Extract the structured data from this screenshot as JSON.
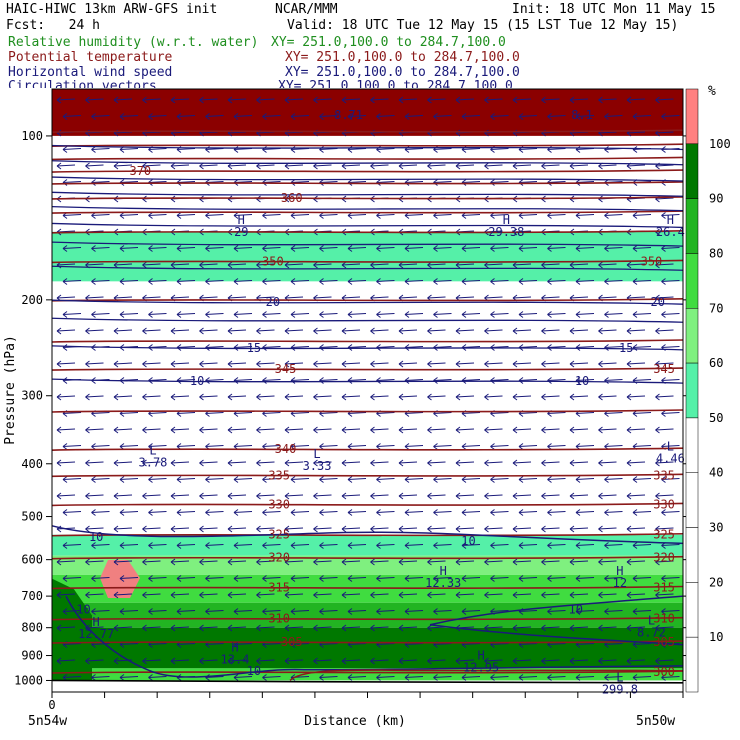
{
  "header": {
    "title": "HAIC-HIWC 13km ARW-GFS init",
    "org": "NCAR/MMM",
    "init": "Init: 18 UTC Mon 11 May 15",
    "fcst": "Fcst:   24 h",
    "valid": "Valid: 18 UTC Tue 12 May 15 (15 LST Tue 12 May 15)",
    "fields": [
      {
        "label": "Relative humidity (w.r.t. water)",
        "xy": "XY= 251.0,100.0 to 284.7,100.0",
        "color": "#1f8f1f"
      },
      {
        "label": "Potential temperature",
        "xy": "XY= 251.0,100.0 to 284.7,100.0",
        "color": "#8b1a1a"
      },
      {
        "label": "Horizontal wind speed",
        "xy": "XY= 251.0,100.0 to 284.7,100.0",
        "color": "#1a1a7a"
      },
      {
        "label": "Circulation vectors",
        "xy": "XY= 251.0,100.0 to 284.7,100.0",
        "color": "#1a1a7a"
      }
    ]
  },
  "chart_data": {
    "type": "heatmap",
    "xlabel": "Distance (km)",
    "ylabel": "Pressure (hPa)",
    "x_tick_label": "0",
    "x_left_label": "5n54w",
    "x_right_label": "5n50w",
    "y_ticks": [
      100,
      200,
      300,
      400,
      500,
      600,
      700,
      800,
      900,
      1000
    ],
    "y_scale": "log",
    "ylim": [
      1050,
      82
    ],
    "colorbar": {
      "unit": "%",
      "levels": [
        10,
        20,
        30,
        40,
        50,
        60,
        70,
        80,
        90,
        100
      ],
      "colors": [
        "#ffffff",
        "#ffffff",
        "#ffffff",
        "#ffffff",
        "#ffffff",
        "#55f0a8",
        "#7ff07f",
        "#40dc40",
        "#22b422",
        "#007800",
        "#ff8080"
      ]
    },
    "theta_labels": [
      {
        "value": "370",
        "p": 116,
        "x": 0.14
      },
      {
        "value": "360",
        "p": 130,
        "x": 0.38
      },
      {
        "value": "350",
        "p": 170,
        "x": 0.35
      },
      {
        "value": "350",
        "p": 170,
        "x": 0.95
      },
      {
        "value": "345",
        "p": 268,
        "x": 0.37
      },
      {
        "value": "345",
        "p": 268,
        "x": 0.97
      },
      {
        "value": "340",
        "p": 376,
        "x": 0.37
      },
      {
        "value": "335",
        "p": 420,
        "x": 0.36
      },
      {
        "value": "335",
        "p": 420,
        "x": 0.97
      },
      {
        "value": "330",
        "p": 475,
        "x": 0.36
      },
      {
        "value": "330",
        "p": 475,
        "x": 0.97
      },
      {
        "value": "325",
        "p": 540,
        "x": 0.36
      },
      {
        "value": "325",
        "p": 540,
        "x": 0.97
      },
      {
        "value": "320",
        "p": 595,
        "x": 0.36
      },
      {
        "value": "320",
        "p": 595,
        "x": 0.97
      },
      {
        "value": "315",
        "p": 675,
        "x": 0.36
      },
      {
        "value": "315",
        "p": 675,
        "x": 0.97
      },
      {
        "value": "310",
        "p": 770,
        "x": 0.36
      },
      {
        "value": "310",
        "p": 770,
        "x": 0.97
      },
      {
        "value": "305",
        "p": 850,
        "x": 0.38
      },
      {
        "value": "305",
        "p": 850,
        "x": 0.97
      },
      {
        "value": "300",
        "p": 965,
        "x": 0.97
      }
    ],
    "wind_labels": [
      {
        "value": "20",
        "p": 202,
        "x": 0.35
      },
      {
        "value": "20",
        "p": 202,
        "x": 0.96
      },
      {
        "value": "15",
        "p": 245,
        "x": 0.32
      },
      {
        "value": "15",
        "p": 245,
        "x": 0.91
      },
      {
        "value": "10",
        "p": 282,
        "x": 0.23
      },
      {
        "value": "10",
        "p": 282,
        "x": 0.84
      },
      {
        "value": "10",
        "p": 545,
        "x": 0.07
      },
      {
        "value": "10",
        "p": 555,
        "x": 0.66
      },
      {
        "value": "10",
        "p": 740,
        "x": 0.05
      },
      {
        "value": "10",
        "p": 740,
        "x": 0.83
      },
      {
        "value": "10",
        "p": 960,
        "x": 0.32
      }
    ],
    "extrema": [
      {
        "type": "H",
        "value": "12.33",
        "p": 640,
        "x": 0.62
      },
      {
        "type": "H",
        "value": "12",
        "p": 640,
        "x": 0.9
      },
      {
        "type": "H",
        "value": "12.77",
        "p": 795,
        "x": 0.07
      },
      {
        "type": "H",
        "value": "13.4",
        "p": 885,
        "x": 0.29
      },
      {
        "type": "H",
        "value": "12.95",
        "p": 915,
        "x": 0.68
      },
      {
        "type": "L",
        "value": "8.72",
        "p": 790,
        "x": 0.95
      },
      {
        "type": "L",
        "value": "3.78",
        "p": 385,
        "x": 0.16
      },
      {
        "type": "L",
        "value": "3.33",
        "p": 390,
        "x": 0.42
      },
      {
        "type": "L",
        "value": "299.8",
        "p": 1005,
        "x": 0.9
      },
      {
        "type": "H",
        "value": "29.38",
        "p": 145,
        "x": 0.72
      },
      {
        "type": "H",
        "value": "26.4",
        "p": 145,
        "x": 0.98
      },
      {
        "type": "H",
        "value": "29",
        "p": 145,
        "x": 0.3
      },
      {
        "type": "L",
        "value": "4.46",
        "p": 378,
        "x": 0.98
      }
    ],
    "top_labels": [
      "8.71",
      "8.1"
    ]
  }
}
